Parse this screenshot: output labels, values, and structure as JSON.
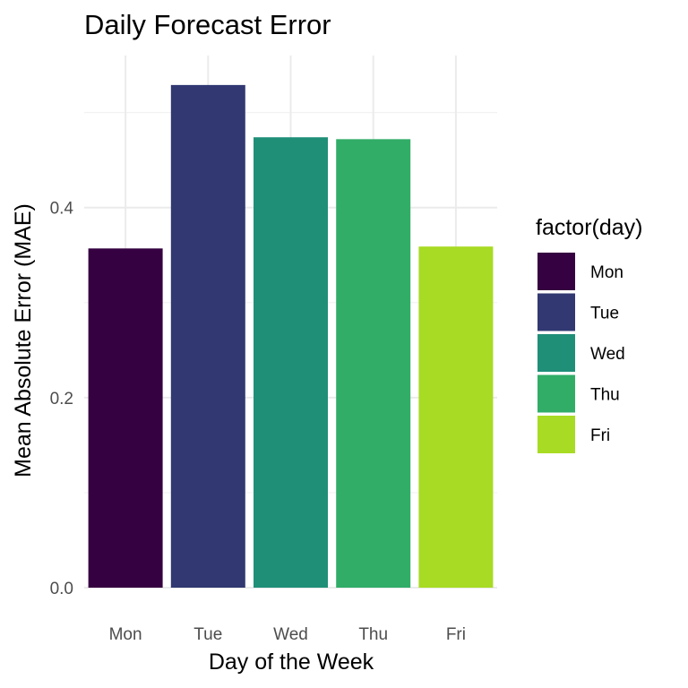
{
  "chart_data": {
    "type": "bar",
    "title": "Daily Forecast Error",
    "xlabel": "Day of the Week",
    "ylabel": "Mean Absolute Error (MAE)",
    "categories": [
      "Mon",
      "Tue",
      "Wed",
      "Thu",
      "Fri"
    ],
    "values": [
      0.357,
      0.529,
      0.474,
      0.472,
      0.359
    ],
    "ylim": [
      0,
      0.56
    ],
    "yticks": [
      "0.0",
      "0.2",
      "0.4"
    ],
    "grid": true,
    "legend": {
      "title": "factor(day)",
      "placement": "right",
      "entries": [
        "Mon",
        "Tue",
        "Wed",
        "Thu",
        "Fri"
      ]
    },
    "colors": [
      "#440154",
      "#3b528b",
      "#21908c",
      "#35b779",
      "#b8de29"
    ],
    "bar_colors_rendered": [
      "#360140",
      "#313872",
      "#1f8f78",
      "#31ad68",
      "#a8db23"
    ]
  }
}
